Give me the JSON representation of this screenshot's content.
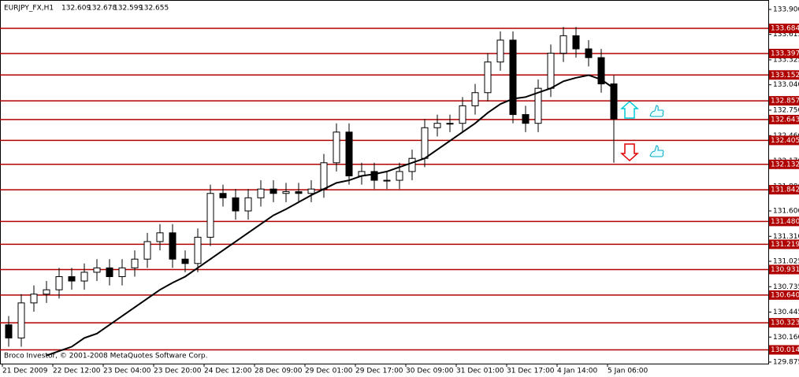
{
  "chart_data": {
    "type": "candlestick",
    "symbol": "EURJPY_FX,H1",
    "quote": [
      "132.609",
      "132.678",
      "132.599",
      "132.655"
    ],
    "copyright": "Broco Investor, © 2001-2008 MetaQuotes Software Corp.",
    "ylim": [
      129.875,
      133.9
    ],
    "yticks": [
      {
        "value": 133.9,
        "label": "133.900"
      },
      {
        "value": 133.615,
        "label": "133.615"
      },
      {
        "value": 133.325,
        "label": "133.325"
      },
      {
        "value": 133.04,
        "label": "133.040"
      },
      {
        "value": 132.75,
        "label": "132.750"
      },
      {
        "value": 132.46,
        "label": "132.460"
      },
      {
        "value": 132.17,
        "label": "132.170"
      },
      {
        "value": 131.88,
        "label": "131.880"
      },
      {
        "value": 131.6,
        "label": "131.600"
      },
      {
        "value": 131.31,
        "label": "131.310"
      },
      {
        "value": 131.025,
        "label": "131.025"
      },
      {
        "value": 130.735,
        "label": "130.735"
      },
      {
        "value": 130.445,
        "label": "130.445"
      },
      {
        "value": 130.16,
        "label": "130.160"
      },
      {
        "value": 129.875,
        "label": "129.875"
      }
    ],
    "x_labels": [
      "21 Dec 2009",
      "22 Dec 12:00",
      "23 Dec 04:00",
      "23 Dec 20:00",
      "24 Dec 12:00",
      "28 Dec 09:00",
      "29 Dec 01:00",
      "29 Dec 17:00",
      "30 Dec 09:00",
      "31 Dec 01:00",
      "31 Dec 17:00",
      "4 Jan 14:00",
      "5 Jan 06:00"
    ],
    "levels": [
      {
        "value": 133.684,
        "label": "133.684"
      },
      {
        "value": 133.397,
        "label": "133.397"
      },
      {
        "value": 133.152,
        "label": "133.152"
      },
      {
        "value": 132.857,
        "label": "132.857"
      },
      {
        "value": 132.643,
        "label": "132.643"
      },
      {
        "value": 132.405,
        "label": "132.405"
      },
      {
        "value": 132.132,
        "label": "132.132"
      },
      {
        "value": 131.842,
        "label": "131.842"
      },
      {
        "value": 131.48,
        "label": "131.480"
      },
      {
        "value": 131.219,
        "label": "131.219"
      },
      {
        "value": 130.931,
        "label": "130.931"
      },
      {
        "value": 130.64,
        "label": "130.640"
      },
      {
        "value": 130.323,
        "label": "130.323"
      },
      {
        "value": 130.014,
        "label": "130.014"
      }
    ],
    "level_color": "#b00000",
    "candles": {
      "open": [
        130.3,
        130.15,
        130.55,
        130.65,
        130.7,
        130.85,
        130.8,
        130.9,
        130.95,
        130.85,
        130.95,
        131.05,
        131.25,
        131.35,
        131.05,
        131.0,
        131.3,
        131.8,
        131.75,
        131.6,
        131.75,
        131.85,
        131.8,
        131.82,
        131.8,
        131.85,
        132.15,
        132.5,
        132.0,
        132.05,
        131.95,
        131.95,
        132.05,
        132.2,
        132.55,
        132.6,
        132.6,
        132.8,
        132.95,
        133.3,
        133.55,
        132.7,
        132.6,
        133.0,
        133.4,
        133.6,
        133.45,
        133.35,
        133.05
      ],
      "high": [
        130.4,
        130.65,
        130.75,
        130.8,
        130.95,
        130.95,
        131.0,
        131.05,
        131.05,
        131.05,
        131.15,
        131.35,
        131.45,
        131.45,
        131.15,
        131.4,
        131.9,
        131.9,
        131.85,
        131.85,
        131.95,
        131.95,
        131.92,
        131.92,
        131.95,
        132.25,
        132.6,
        132.6,
        132.15,
        132.15,
        132.05,
        132.15,
        132.3,
        132.65,
        132.7,
        132.7,
        132.9,
        133.05,
        133.4,
        133.65,
        133.65,
        132.8,
        133.1,
        133.5,
        133.7,
        133.7,
        133.55,
        133.45,
        133.15
      ],
      "low": [
        130.05,
        130.05,
        130.45,
        130.55,
        130.6,
        130.7,
        130.7,
        130.8,
        130.75,
        130.75,
        130.85,
        130.95,
        131.15,
        130.95,
        130.9,
        130.9,
        131.2,
        131.65,
        131.5,
        131.5,
        131.65,
        131.7,
        131.7,
        131.7,
        131.7,
        131.75,
        132.05,
        131.9,
        131.9,
        131.85,
        131.85,
        131.85,
        131.95,
        132.1,
        132.45,
        132.5,
        132.5,
        132.7,
        132.85,
        133.2,
        132.6,
        132.5,
        132.5,
        132.9,
        133.3,
        133.35,
        133.25,
        132.95,
        132.15
      ],
      "close": [
        130.15,
        130.55,
        130.65,
        130.7,
        130.85,
        130.8,
        130.9,
        130.95,
        130.85,
        130.95,
        131.05,
        131.25,
        131.35,
        131.05,
        131.0,
        131.3,
        131.8,
        131.75,
        131.6,
        131.75,
        131.85,
        131.8,
        131.82,
        131.8,
        131.85,
        132.15,
        132.5,
        132.0,
        132.05,
        131.95,
        131.95,
        132.05,
        132.2,
        132.55,
        132.6,
        132.6,
        132.8,
        132.95,
        133.3,
        133.55,
        132.7,
        132.6,
        133.0,
        133.4,
        133.6,
        133.45,
        133.35,
        133.05,
        132.65
      ]
    },
    "ma": [
      null,
      null,
      null,
      129.95,
      130.0,
      130.05,
      130.15,
      130.2,
      130.3,
      130.4,
      130.5,
      130.6,
      130.7,
      130.78,
      130.85,
      130.95,
      131.05,
      131.15,
      131.25,
      131.35,
      131.45,
      131.55,
      131.62,
      131.7,
      131.78,
      131.85,
      131.92,
      131.95,
      132.0,
      132.02,
      132.05,
      132.1,
      132.15,
      132.2,
      132.3,
      132.4,
      132.5,
      132.6,
      132.72,
      132.82,
      132.88,
      132.9,
      132.95,
      133.0,
      133.08,
      133.12,
      133.15,
      133.1,
      133.0
    ],
    "ma_color": "#000000"
  }
}
